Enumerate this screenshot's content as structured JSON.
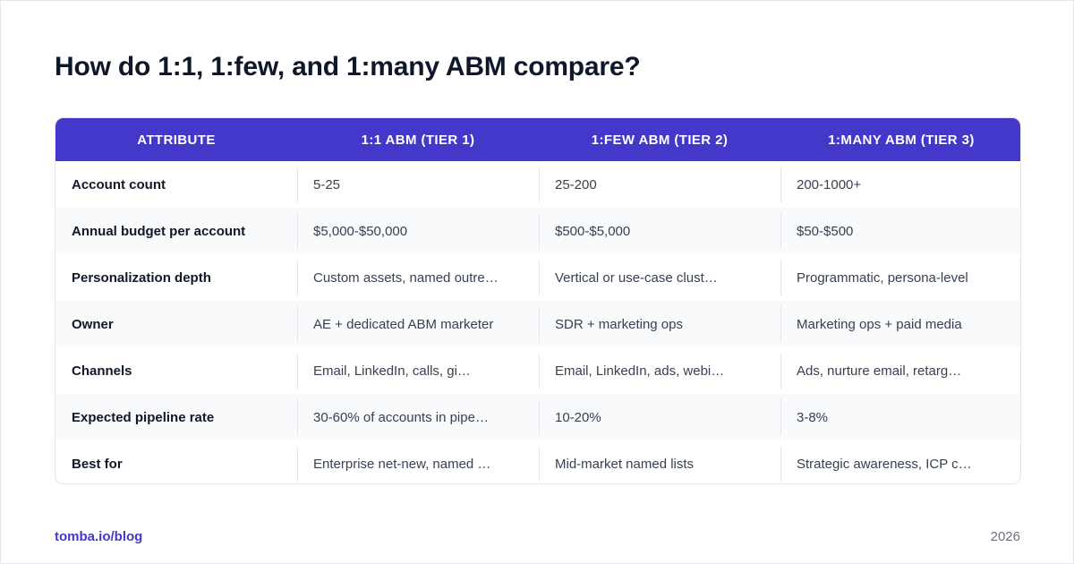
{
  "page": {
    "title": "How do 1:1, 1:few, and 1:many ABM compare?"
  },
  "table": {
    "headers": [
      "Attribute",
      "1:1 ABM (Tier 1)",
      "1:few ABM (Tier 2)",
      "1:many ABM (Tier 3)"
    ],
    "rows": [
      [
        "Account count",
        "5-25",
        "25-200",
        "200-1000+"
      ],
      [
        "Annual budget per account",
        "$5,000-$50,000",
        "$500-$5,000",
        "$50-$500"
      ],
      [
        "Personalization depth",
        "Custom assets, named outre…",
        "Vertical or use-case clust…",
        "Programmatic, persona-level"
      ],
      [
        "Owner",
        "AE + dedicated ABM marketer",
        "SDR + marketing ops",
        "Marketing ops + paid media"
      ],
      [
        "Channels",
        "Email, LinkedIn, calls, gi…",
        "Email, LinkedIn, ads, webi…",
        "Ads, nurture email, retarg…"
      ],
      [
        "Expected pipeline rate",
        "30-60% of accounts in pipe…",
        "10-20%",
        "3-8%"
      ],
      [
        "Best for",
        "Enterprise net-new, named …",
        "Mid-market named lists",
        "Strategic awareness, ICP c…"
      ]
    ]
  },
  "footer": {
    "link_text": "tomba.io/blog",
    "year": "2026"
  },
  "colors": {
    "header_bg": "#4338ca",
    "accent": "#4338ca",
    "row_alt": "#f8fafc"
  }
}
